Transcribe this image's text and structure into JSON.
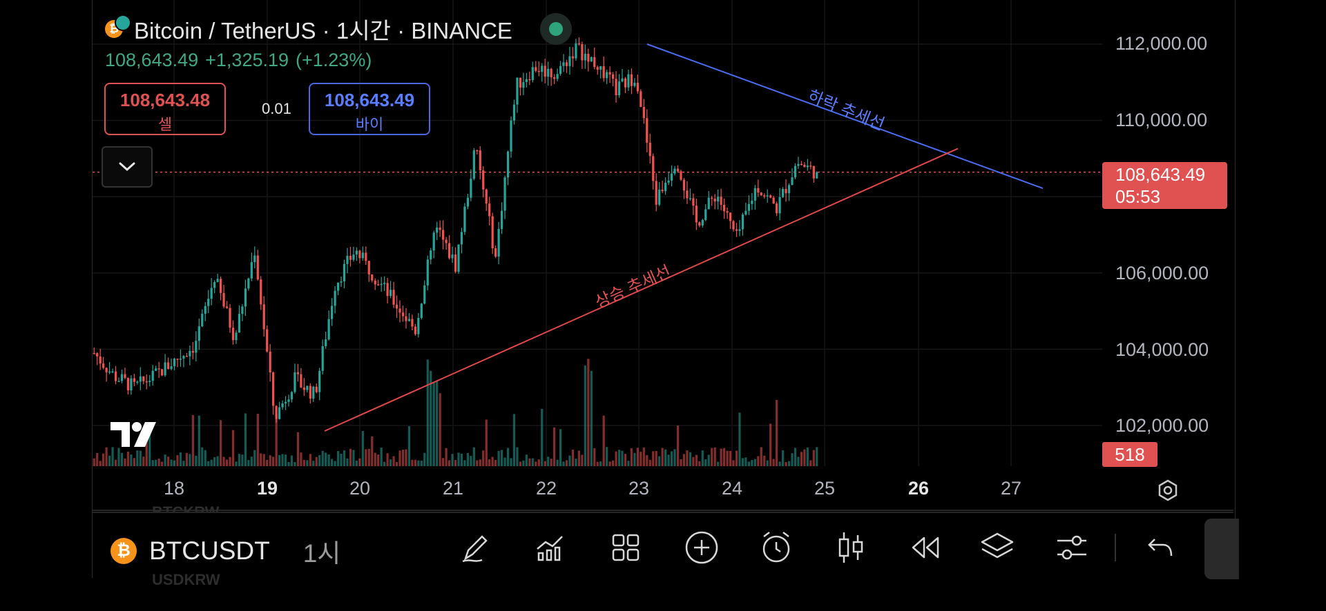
{
  "header": {
    "title": "Bitcoin / TetherUS · 1시간 · BINANCE",
    "coin_letter": "₿",
    "last": "108,643.49",
    "change": "+1,325.19",
    "change_pct": "(+1.23%)"
  },
  "trade": {
    "sell_price": "108,643.48",
    "sell_label": "셀",
    "spread": "0.01",
    "buy_price": "108,643.49",
    "buy_label": "바이"
  },
  "price_axis": {
    "labels": [
      "112,000.00",
      "110,000.00",
      "106,000.00",
      "104,000.00",
      "102,000.00"
    ],
    "current_price": "108,643.49",
    "countdown": "05:53",
    "volume": "518"
  },
  "time_axis": {
    "labels": [
      "18",
      "19",
      "20",
      "21",
      "22",
      "23",
      "24",
      "25",
      "26",
      "27"
    ],
    "bold": [
      "19",
      "26"
    ]
  },
  "annotations": {
    "downtrend": "하락 추세선",
    "uptrend": "상승 추세선"
  },
  "toolbar": {
    "symbol": "BTCUSDT",
    "timeframe": "1시",
    "ghost_top": "BTCKRW",
    "ghost_bottom": "USDKRW",
    "icons": [
      "drawing-icon",
      "indicators-icon",
      "layout-icon",
      "add-icon",
      "alert-icon",
      "candle-type-icon",
      "replay-icon",
      "layers-icon",
      "settings-icon",
      "undo-icon"
    ]
  },
  "colors": {
    "up": "#26a69a",
    "down": "#ef5350",
    "downtrend_line": "#4a6cf0",
    "uptrend_line": "#e04848",
    "price_tag": "#e05252"
  },
  "chart_data": {
    "type": "candlestick",
    "symbol": "Bitcoin / TetherUS",
    "interval": "1시간",
    "exchange": "BINANCE",
    "ylim": [
      101000,
      113000
    ],
    "x": [
      "18",
      "19",
      "20",
      "21",
      "22",
      "23",
      "24",
      "25",
      "26",
      "27"
    ],
    "approx_close_path": [
      103900,
      103300,
      103000,
      103300,
      103700,
      104100,
      105900,
      104300,
      106600,
      102200,
      103200,
      102800,
      105700,
      106600,
      105900,
      105200,
      104500,
      107200,
      106200,
      109300,
      106400,
      110900,
      111400,
      111200,
      111900,
      111500,
      110800,
      111200,
      107900,
      109000,
      107300,
      108100,
      106900,
      108300,
      107700,
      108900,
      108643
    ],
    "current_price": 108643.49,
    "downtrend_line": {
      "label": "하락 추세선",
      "from": [
        "23",
        112000
      ],
      "to": [
        "27",
        108400
      ]
    },
    "uptrend_line": {
      "label": "상승 추세선",
      "from": [
        "19",
        102000
      ],
      "to": [
        "26",
        108900
      ]
    }
  }
}
